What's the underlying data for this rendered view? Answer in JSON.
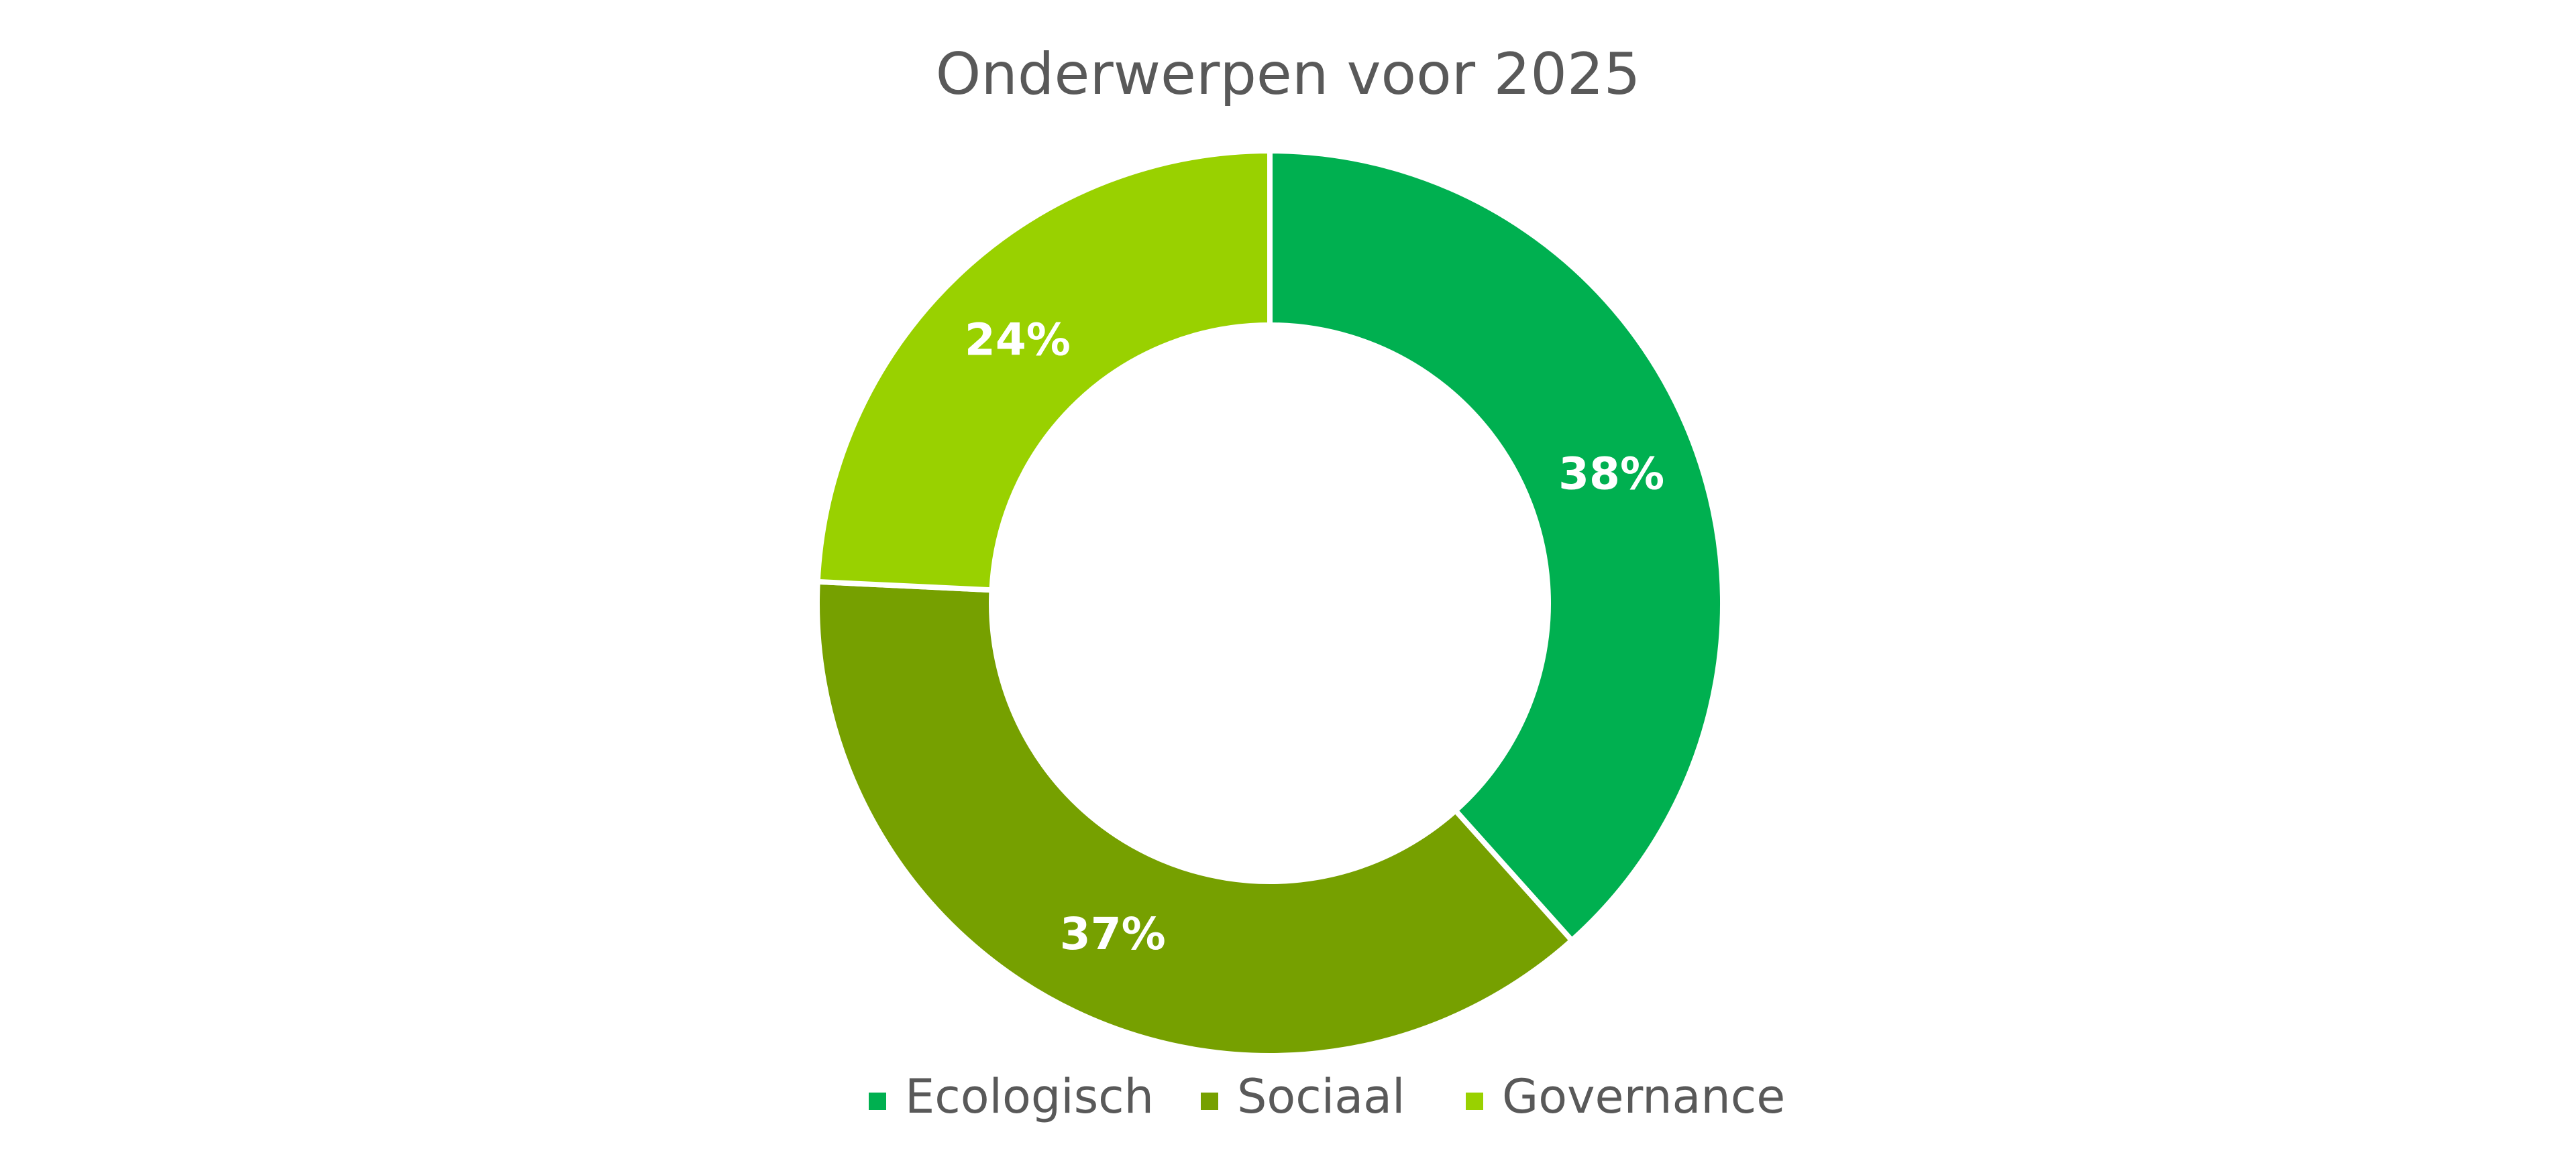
{
  "chart_data": {
    "type": "pie",
    "variant": "donut",
    "title": "Onderwerpen voor 2025",
    "categories": [
      "Ecologisch",
      "Sociaal",
      "Governance"
    ],
    "values": [
      38,
      37,
      24
    ],
    "labels": [
      "38%",
      "37%",
      "24%"
    ],
    "colors": [
      "#00b050",
      "#76a000",
      "#99d100"
    ],
    "legend": "bottom"
  }
}
